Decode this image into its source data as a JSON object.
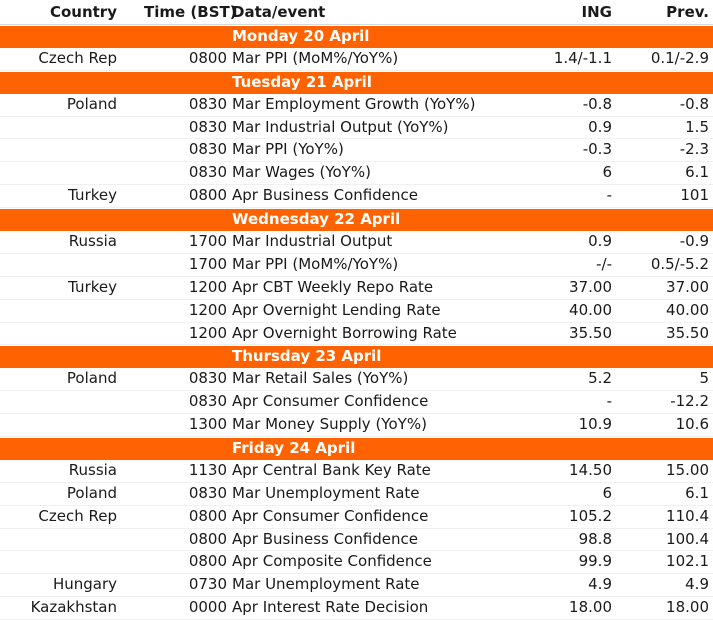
{
  "headers": {
    "country": "Country",
    "time": "Time (BST)",
    "event": "Data/event",
    "ing": "ING",
    "prev": "Prev."
  },
  "colors": {
    "day_band": "#ff6200",
    "day_text": "#ffffff"
  },
  "rows": [
    {
      "type": "day",
      "label": "Monday 20 April"
    },
    {
      "type": "data",
      "country": "Czech Rep",
      "time": "0800",
      "event": "Mar PPI (MoM%/YoY%)",
      "ing": "1.4/-1.1",
      "prev": "0.1/-2.9"
    },
    {
      "type": "day",
      "label": "Tuesday 21 April"
    },
    {
      "type": "data",
      "country": "Poland",
      "time": "0830",
      "event": "Mar Employment Growth (YoY%)",
      "ing": "-0.8",
      "prev": "-0.8"
    },
    {
      "type": "data",
      "country": "",
      "time": "0830",
      "event": "Mar Industrial Output (YoY%)",
      "ing": "0.9",
      "prev": "1.5"
    },
    {
      "type": "data",
      "country": "",
      "time": "0830",
      "event": "Mar PPI (YoY%)",
      "ing": "-0.3",
      "prev": "-2.3"
    },
    {
      "type": "data",
      "country": "",
      "time": "0830",
      "event": "Mar Wages (YoY%)",
      "ing": "6",
      "prev": "6.1"
    },
    {
      "type": "data",
      "country": "Turkey",
      "time": "0800",
      "event": "Apr Business Confidence",
      "ing": "-",
      "prev": "101"
    },
    {
      "type": "day",
      "label": "Wednesday 22 April"
    },
    {
      "type": "data",
      "country": "Russia",
      "time": "1700",
      "event": "Mar Industrial Output",
      "ing": "0.9",
      "prev": "-0.9"
    },
    {
      "type": "data",
      "country": "",
      "time": "1700",
      "event": "Mar PPI (MoM%/YoY%)",
      "ing": "-/-",
      "prev": "0.5/-5.2"
    },
    {
      "type": "data",
      "country": "Turkey",
      "time": "1200",
      "event": "Apr CBT Weekly Repo Rate",
      "ing": "37.00",
      "prev": "37.00"
    },
    {
      "type": "data",
      "country": "",
      "time": "1200",
      "event": "Apr Overnight Lending Rate",
      "ing": "40.00",
      "prev": "40.00"
    },
    {
      "type": "data",
      "country": "",
      "time": "1200",
      "event": "Apr Overnight Borrowing Rate",
      "ing": "35.50",
      "prev": "35.50"
    },
    {
      "type": "day",
      "label": "Thursday 23 April"
    },
    {
      "type": "data",
      "country": "Poland",
      "time": "0830",
      "event": "Mar Retail Sales (YoY%)",
      "ing": "5.2",
      "prev": "5"
    },
    {
      "type": "data",
      "country": "",
      "time": "0830",
      "event": "Apr Consumer Confidence",
      "ing": "-",
      "prev": "-12.2"
    },
    {
      "type": "data",
      "country": "",
      "time": "1300",
      "event": "Mar Money Supply (YoY%)",
      "ing": "10.9",
      "prev": "10.6"
    },
    {
      "type": "day",
      "label": "Friday 24 April"
    },
    {
      "type": "data",
      "country": "Russia",
      "time": "1130",
      "event": "Apr Central Bank Key Rate",
      "ing": "14.50",
      "prev": "15.00"
    },
    {
      "type": "data",
      "country": "Poland",
      "time": "0830",
      "event": "Mar Unemployment Rate",
      "ing": "6",
      "prev": "6.1"
    },
    {
      "type": "data",
      "country": "Czech Rep",
      "time": "0800",
      "event": "Apr Consumer Confidence",
      "ing": "105.2",
      "prev": "110.4"
    },
    {
      "type": "data",
      "country": "",
      "time": "0800",
      "event": "Apr Business Confidence",
      "ing": "98.8",
      "prev": "100.4"
    },
    {
      "type": "data",
      "country": "",
      "time": "0800",
      "event": "Apr Composite Confidence",
      "ing": "99.9",
      "prev": "102.1"
    },
    {
      "type": "data",
      "country": "Hungary",
      "time": "0730",
      "event": "Mar Unemployment Rate",
      "ing": "4.9",
      "prev": "4.9"
    },
    {
      "type": "data",
      "country": "Kazakhstan",
      "time": "0000",
      "event": "Apr Interest Rate Decision",
      "ing": "18.00",
      "prev": "18.00"
    }
  ]
}
